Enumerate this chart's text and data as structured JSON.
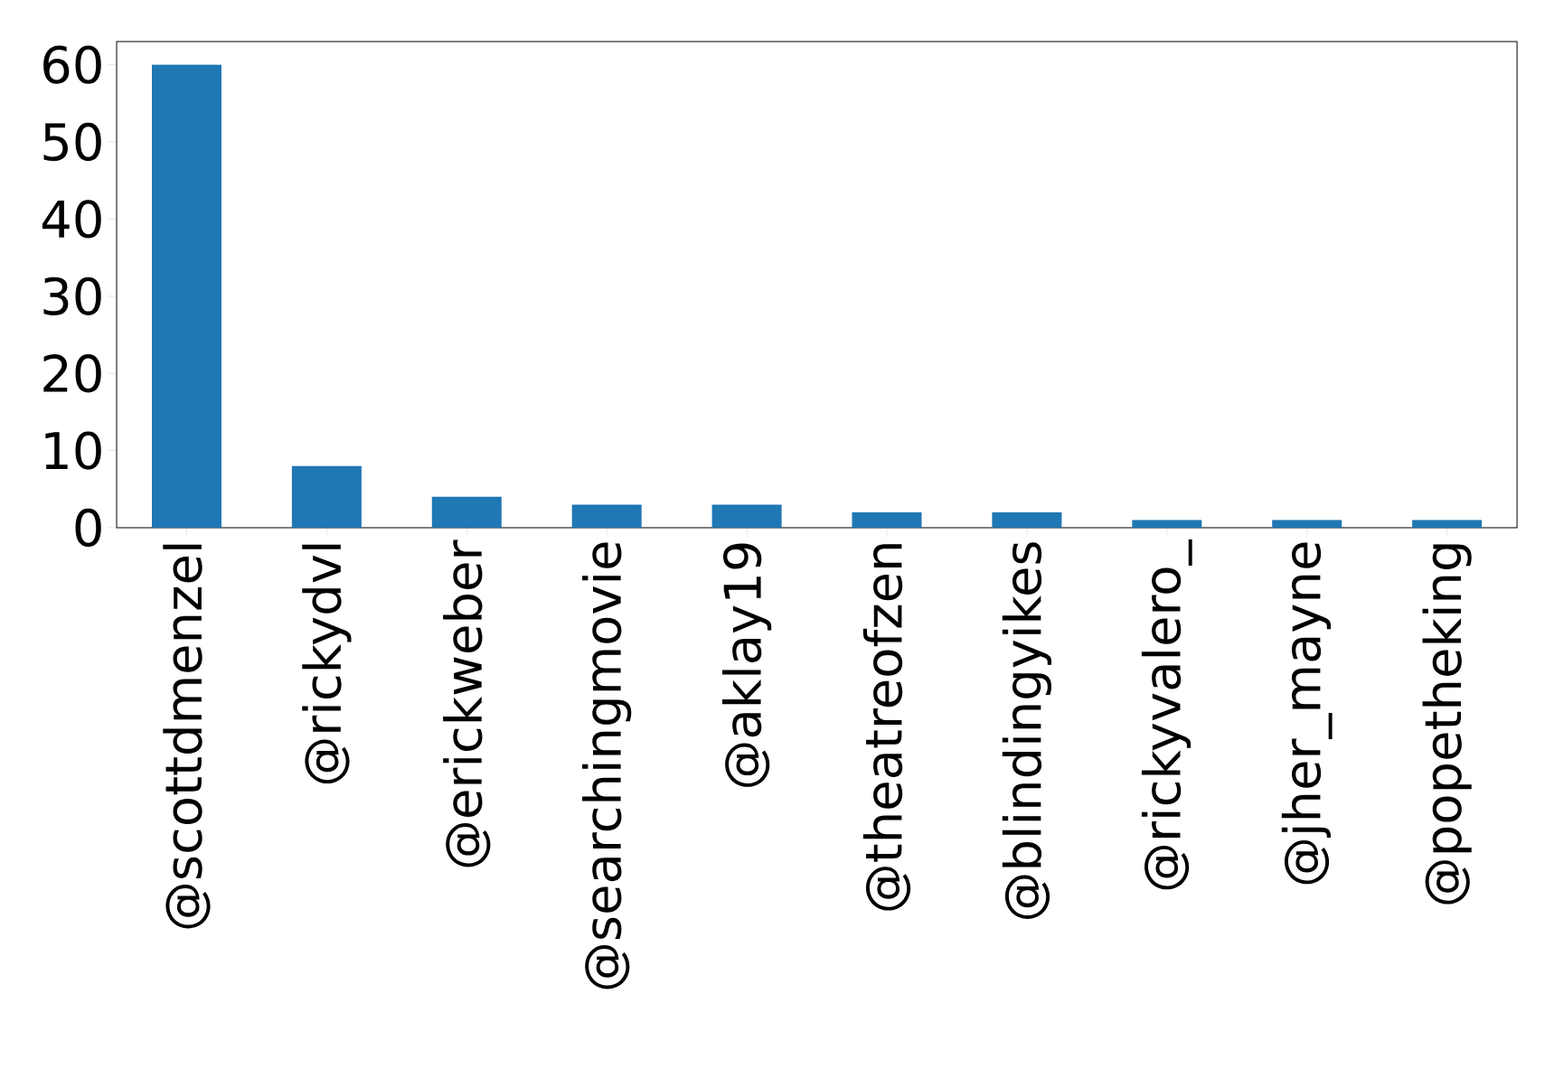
{
  "chart_data": {
    "type": "bar",
    "categories": [
      "@scottdmenzel",
      "@rickydvl",
      "@erickweber",
      "@searchingmovie",
      "@aklay19",
      "@theatreofzen",
      "@blindingyikes",
      "@rickyvalero_",
      "@jher_mayne",
      "@popetheking"
    ],
    "values": [
      60,
      8,
      4,
      3,
      3,
      2,
      2,
      1,
      1,
      1
    ],
    "color": "#1f77b4",
    "ylim": [
      0,
      63
    ],
    "yticks": [
      0,
      10,
      20,
      30,
      40,
      50,
      60
    ],
    "grid": false
  }
}
